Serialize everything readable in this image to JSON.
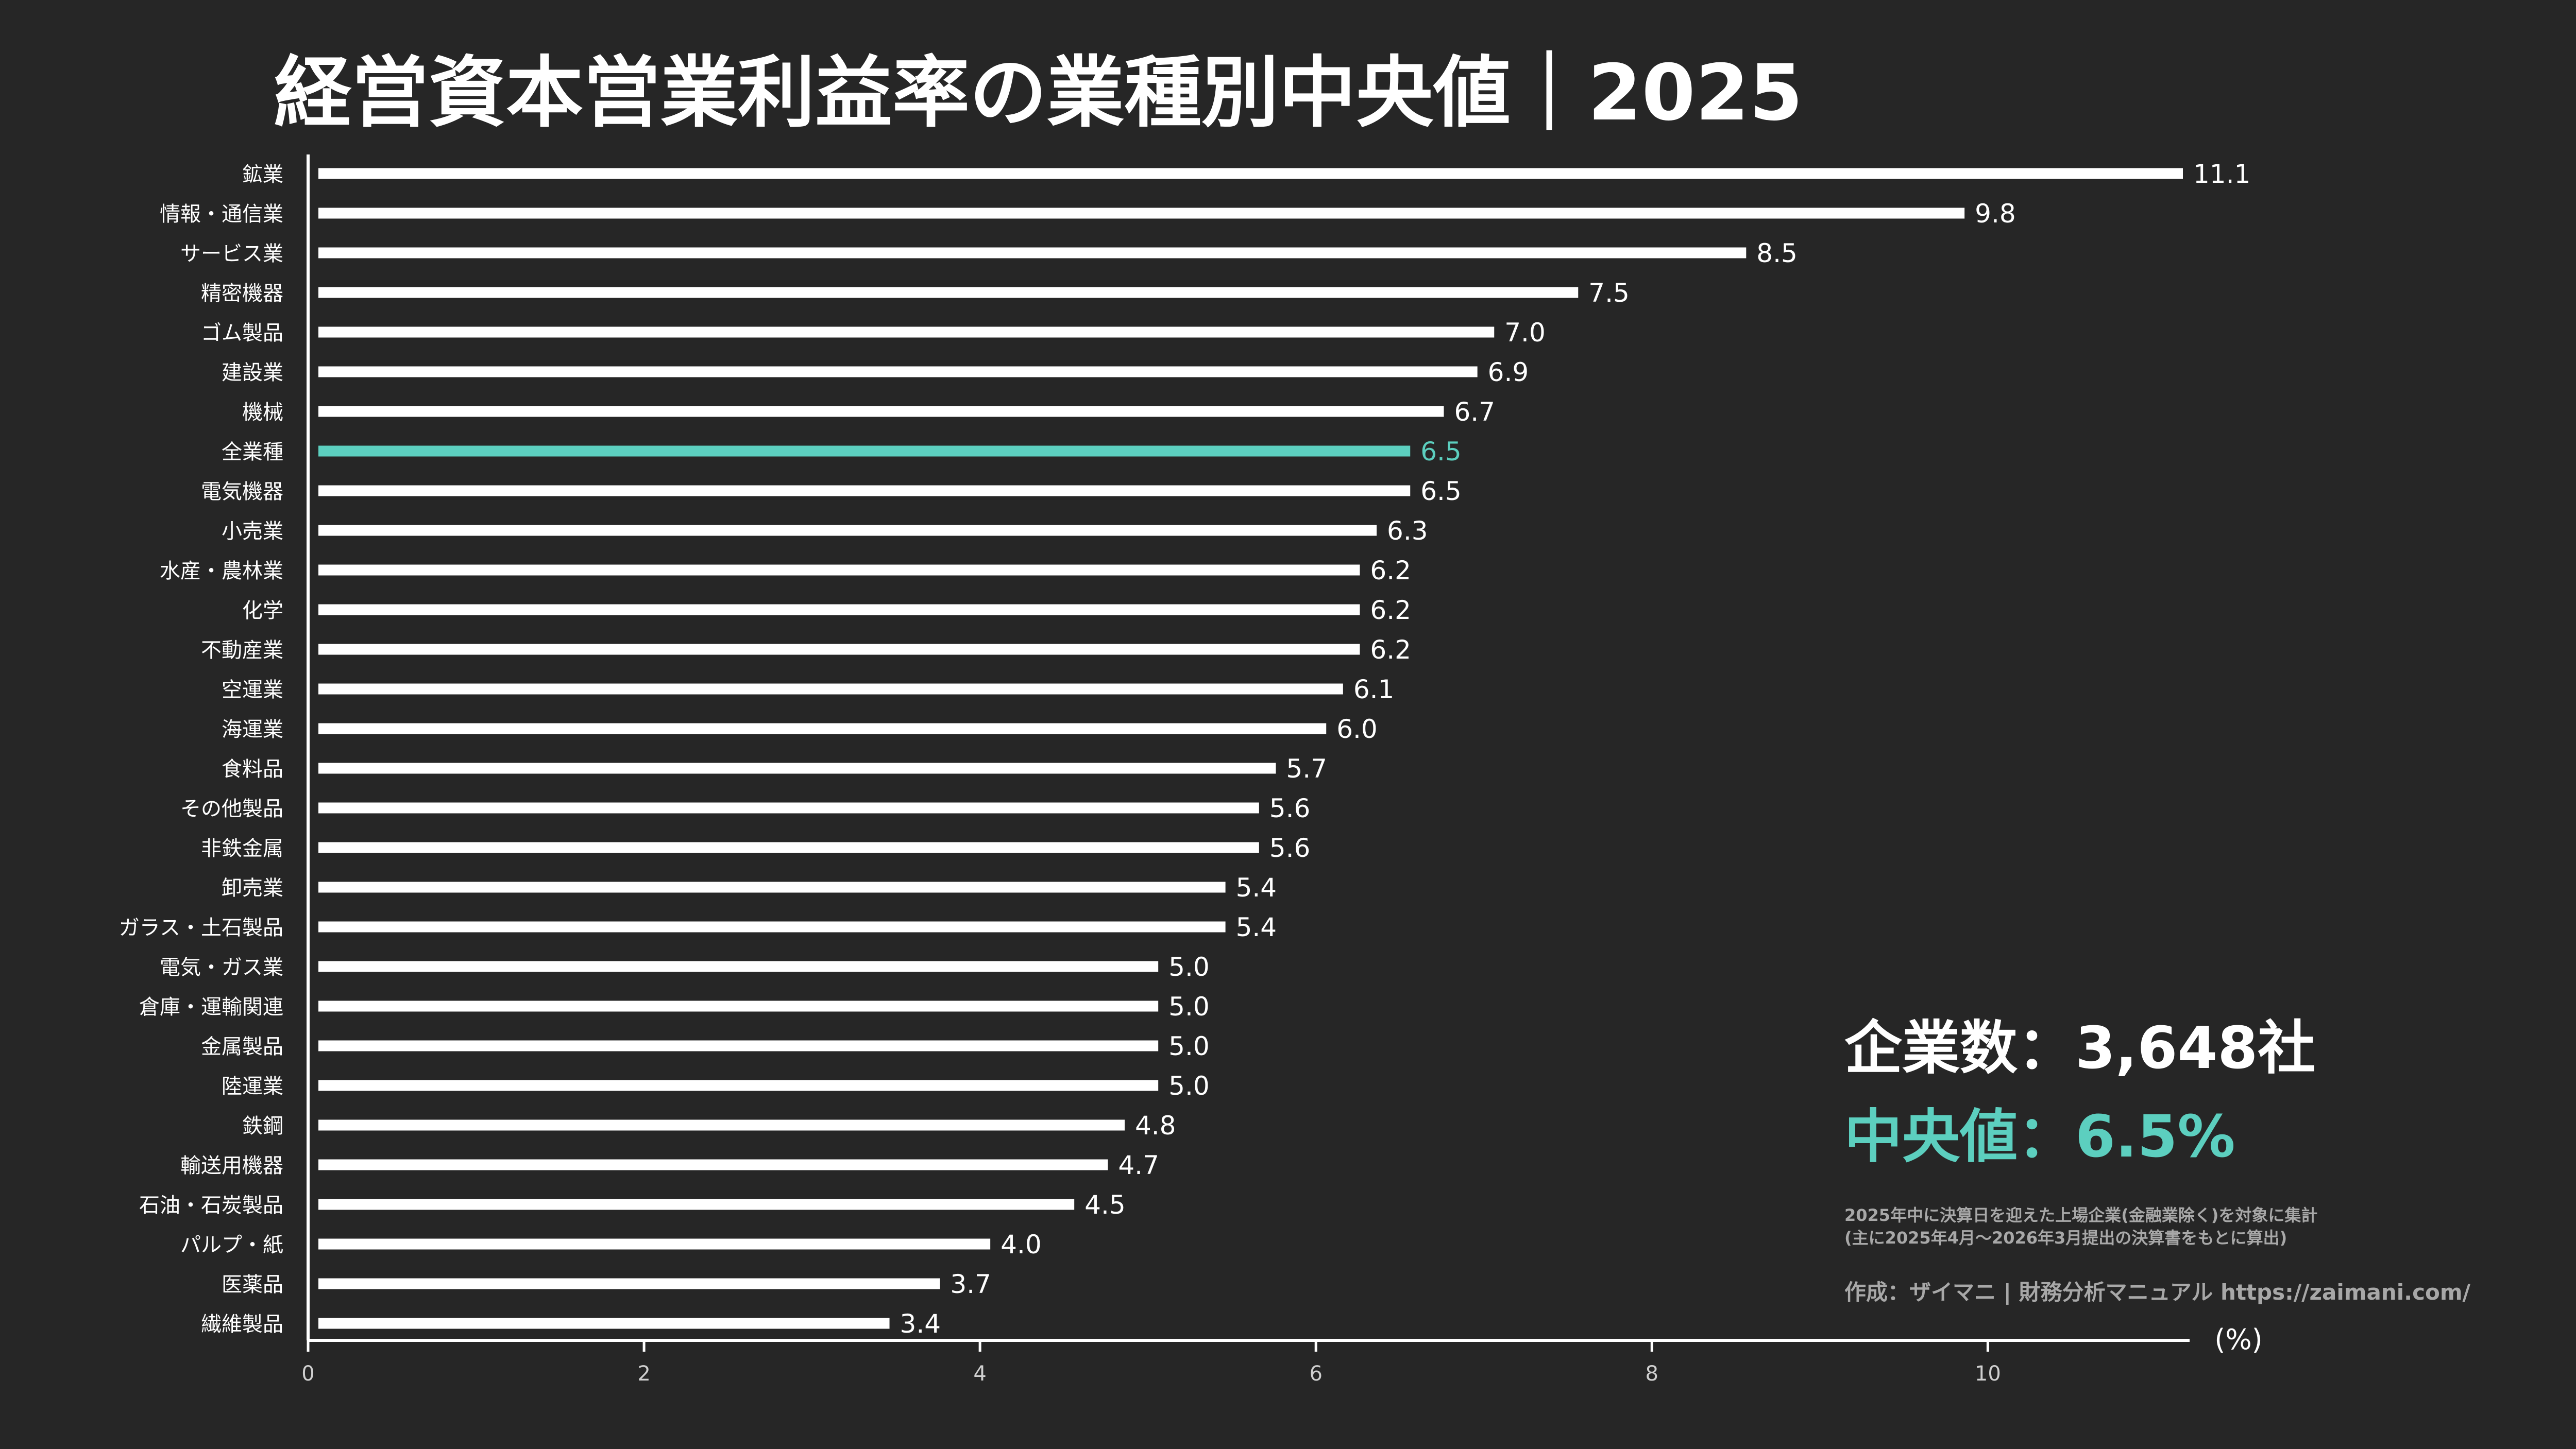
{
  "chart_data": {
    "type": "bar",
    "orientation": "horizontal",
    "title": "経営資本営業利益率の業種別中央値｜2025",
    "xlabel": "(%)",
    "ylabel": "",
    "xlim": [
      0,
      11.1
    ],
    "xticks": [
      "0",
      "2",
      "4",
      "6",
      "8",
      "10"
    ],
    "grid": false,
    "highlight_category": "全業種",
    "colors": {
      "background": "#262626",
      "bar": "#ffffff",
      "highlight": "#5ccfbf",
      "text": "#ffffff",
      "tick_text": "#d0d0d0"
    },
    "categories": [
      "鉱業",
      "情報・通信業",
      "サービス業",
      "精密機器",
      "ゴム製品",
      "建設業",
      "機械",
      "全業種",
      "電気機器",
      "小売業",
      "水産・農林業",
      "化学",
      "不動産業",
      "空運業",
      "海運業",
      "食料品",
      "その他製品",
      "非鉄金属",
      "卸売業",
      "ガラス・土石製品",
      "電気・ガス業",
      "倉庫・運輸関連",
      "金属製品",
      "陸運業",
      "鉄鋼",
      "輸送用機器",
      "石油・石炭製品",
      "パルプ・紙",
      "医薬品",
      "繊維製品"
    ],
    "values": [
      11.1,
      9.8,
      8.5,
      7.5,
      7.0,
      6.9,
      6.7,
      6.5,
      6.5,
      6.3,
      6.2,
      6.2,
      6.2,
      6.1,
      6.0,
      5.7,
      5.6,
      5.6,
      5.4,
      5.4,
      5.0,
      5.0,
      5.0,
      5.0,
      4.8,
      4.7,
      4.5,
      4.0,
      3.7,
      3.4
    ],
    "value_labels": [
      "11.1",
      "9.8",
      "8.5",
      "7.5",
      "7.0",
      "6.9",
      "6.7",
      "6.5",
      "6.5",
      "6.3",
      "6.2",
      "6.2",
      "6.2",
      "6.1",
      "6.0",
      "5.7",
      "5.6",
      "5.6",
      "5.4",
      "5.4",
      "5.0",
      "5.0",
      "5.0",
      "5.0",
      "4.8",
      "4.7",
      "4.5",
      "4.0",
      "3.7",
      "3.4"
    ]
  },
  "stats": {
    "companies": "企業数：3,648社",
    "median": "中央値：6.5%"
  },
  "notes": {
    "line1": "2025年中に決算日を迎えた上場企業(金融業除く)を対象に集計",
    "line2": "(主に2025年4月～2026年3月提出の決算書をもとに算出)",
    "credit": "作成：ザイマニ | 財務分析マニュアル https://zaimani.com/"
  }
}
